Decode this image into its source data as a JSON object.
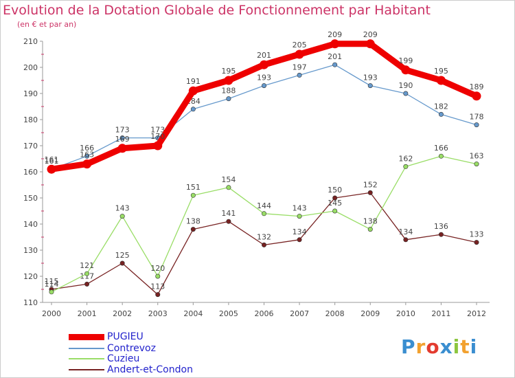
{
  "header": {
    "title": "Evolution de la Dotation Globale de Fonctionnement par Habitant",
    "subtitle": "(en € et par an)"
  },
  "logo": {
    "text": "Proxiti",
    "colors": [
      "#3a8ed0",
      "#f2a12f",
      "#e33b2f",
      "#3a8ed0",
      "#8cc63f",
      "#f2a12f",
      "#3a8ed0"
    ]
  },
  "chart_data": {
    "type": "line",
    "title": "Evolution de la Dotation Globale de Fonctionnement par Habitant",
    "subtitle": "(en € et par an)",
    "xlabel": "",
    "ylabel": "",
    "x": [
      2000,
      2001,
      2002,
      2003,
      2004,
      2005,
      2006,
      2007,
      2008,
      2009,
      2010,
      2011,
      2012
    ],
    "ylim": [
      110,
      210
    ],
    "yticks": [
      110,
      120,
      130,
      140,
      150,
      160,
      170,
      180,
      190,
      200,
      210
    ],
    "grid": false,
    "legend_position": "bottom-left",
    "series": [
      {
        "name": "PUGIEU",
        "color": "#ee0000",
        "values": [
          161,
          163,
          169,
          170,
          191,
          195,
          201,
          205,
          209,
          209,
          199,
          195,
          189
        ]
      },
      {
        "name": "Contrevoz",
        "color": "#6699cc",
        "values": [
          161,
          166,
          173,
          173,
          184,
          188,
          193,
          197,
          201,
          193,
          190,
          182,
          178
        ]
      },
      {
        "name": "Cuzieu",
        "color": "#99dd66",
        "values": [
          114,
          121,
          143,
          120,
          151,
          154,
          144,
          143,
          145,
          138,
          162,
          166,
          163
        ]
      },
      {
        "name": "Andert-et-Condon",
        "color": "#772222",
        "values": [
          115,
          117,
          125,
          113,
          138,
          141,
          132,
          134,
          150,
          152,
          134,
          136,
          133
        ]
      }
    ]
  }
}
